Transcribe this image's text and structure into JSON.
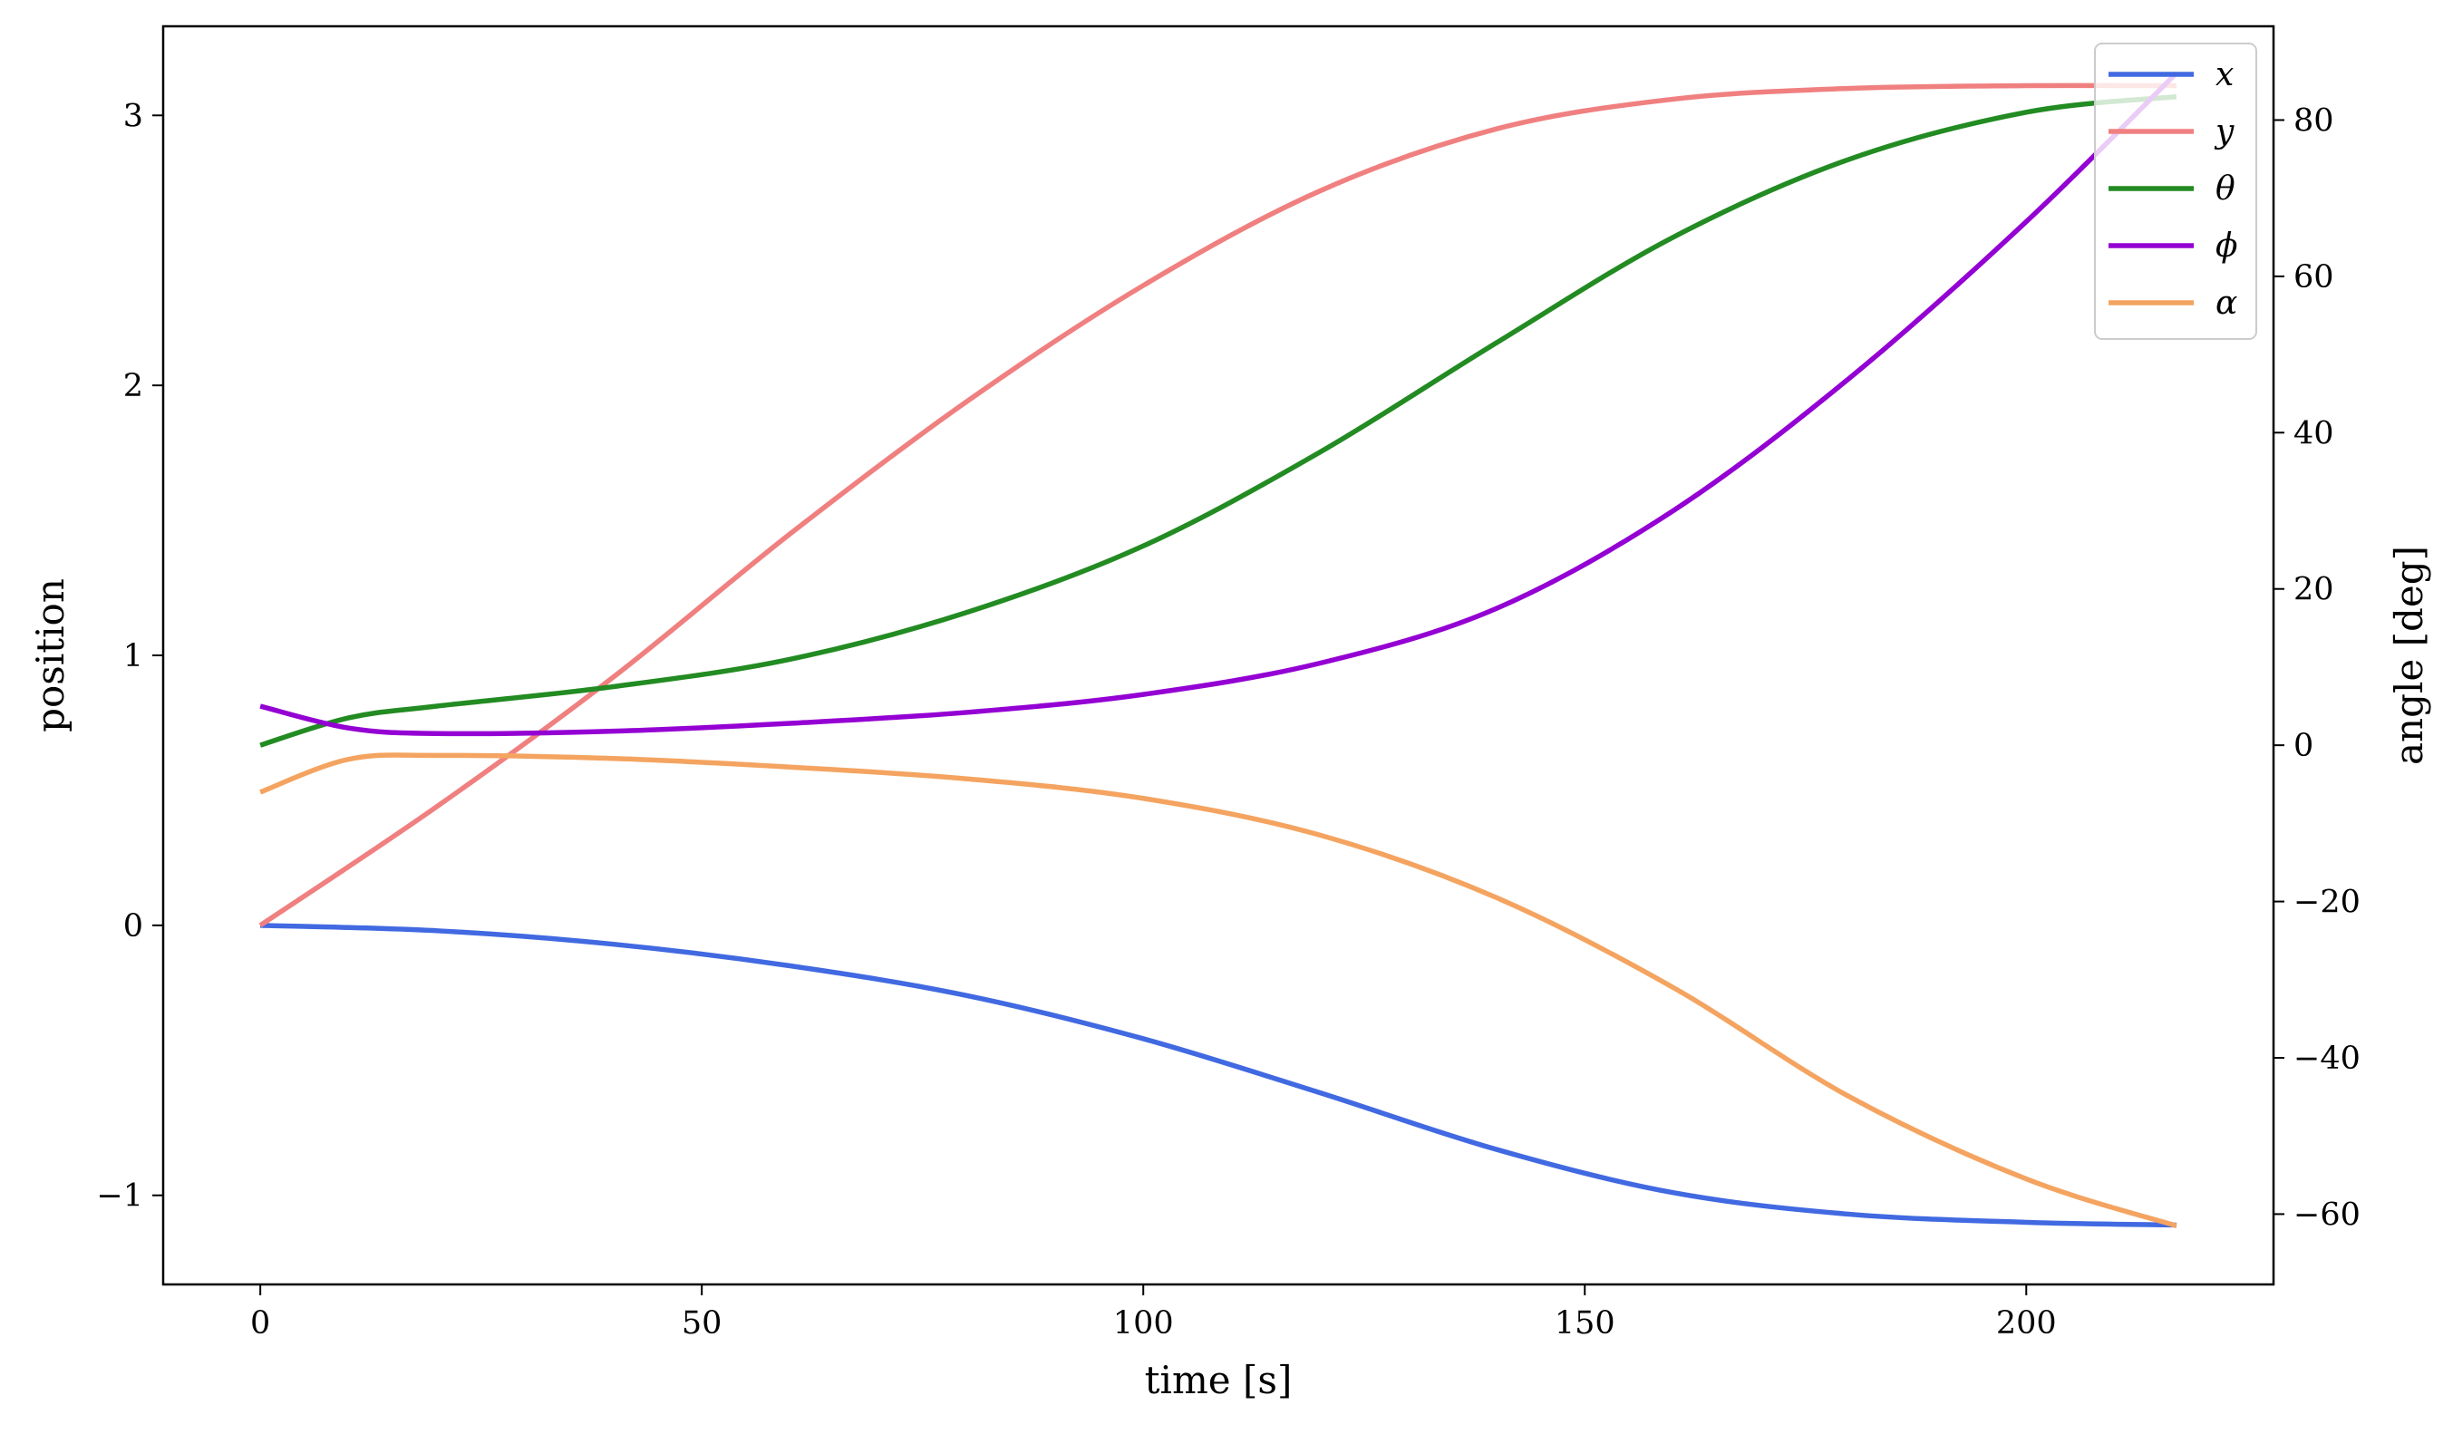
{
  "chart_data": {
    "type": "line",
    "xlabel": "time [s]",
    "ylabel": "position",
    "y2label": "angle [deg]",
    "xlim": [
      -11,
      228
    ],
    "ylim": [
      -1.33,
      3.33
    ],
    "y2lim": [
      -69,
      92
    ],
    "xticks": [
      0,
      50,
      100,
      150,
      200
    ],
    "yticks": [
      -1,
      0,
      1,
      2,
      3
    ],
    "y2ticks": [
      -60,
      -40,
      -20,
      0,
      20,
      40,
      60,
      80
    ],
    "grid": false,
    "legend_position": "top-right",
    "series": [
      {
        "name": "x",
        "axis": "left",
        "color": "#4169e1",
        "points": [
          [
            0,
            0.0
          ],
          [
            20,
            -0.02
          ],
          [
            40,
            -0.07
          ],
          [
            60,
            -0.15
          ],
          [
            80,
            -0.26
          ],
          [
            100,
            -0.42
          ],
          [
            120,
            -0.62
          ],
          [
            140,
            -0.83
          ],
          [
            160,
            -0.99
          ],
          [
            180,
            -1.07
          ],
          [
            200,
            -1.1
          ],
          [
            217,
            -1.11
          ]
        ]
      },
      {
        "name": "y",
        "axis": "left",
        "color": "#f08080",
        "points": [
          [
            0,
            0.0
          ],
          [
            20,
            0.44
          ],
          [
            40,
            0.92
          ],
          [
            60,
            1.45
          ],
          [
            80,
            1.94
          ],
          [
            100,
            2.37
          ],
          [
            120,
            2.72
          ],
          [
            140,
            2.95
          ],
          [
            160,
            3.06
          ],
          [
            180,
            3.1
          ],
          [
            200,
            3.11
          ],
          [
            217,
            3.11
          ]
        ]
      },
      {
        "name": "θ",
        "axis": "right",
        "color": "#228b22",
        "points": [
          [
            0,
            0.0
          ],
          [
            10,
            3.5
          ],
          [
            20,
            5.0
          ],
          [
            40,
            7.5
          ],
          [
            60,
            11.0
          ],
          [
            80,
            17.0
          ],
          [
            100,
            25.5
          ],
          [
            120,
            37.5
          ],
          [
            140,
            51.5
          ],
          [
            160,
            65.0
          ],
          [
            180,
            75.0
          ],
          [
            200,
            81.0
          ],
          [
            217,
            83.0
          ]
        ]
      },
      {
        "name": "ϕ",
        "axis": "right",
        "color": "#9400d3",
        "points": [
          [
            0,
            5.0
          ],
          [
            10,
            2.2
          ],
          [
            20,
            1.5
          ],
          [
            40,
            1.8
          ],
          [
            60,
            2.8
          ],
          [
            80,
            4.2
          ],
          [
            100,
            6.5
          ],
          [
            120,
            10.5
          ],
          [
            140,
            17.5
          ],
          [
            160,
            30.0
          ],
          [
            180,
            47.0
          ],
          [
            200,
            67.0
          ],
          [
            217,
            86.0
          ]
        ]
      },
      {
        "name": "α",
        "axis": "right",
        "color": "#f4a460",
        "points": [
          [
            0,
            -6.0
          ],
          [
            10,
            -1.8
          ],
          [
            20,
            -1.3
          ],
          [
            40,
            -1.7
          ],
          [
            60,
            -2.8
          ],
          [
            80,
            -4.3
          ],
          [
            100,
            -6.8
          ],
          [
            120,
            -11.5
          ],
          [
            140,
            -19.5
          ],
          [
            160,
            -31.0
          ],
          [
            180,
            -45.0
          ],
          [
            200,
            -55.5
          ],
          [
            217,
            -61.5
          ]
        ]
      }
    ]
  }
}
